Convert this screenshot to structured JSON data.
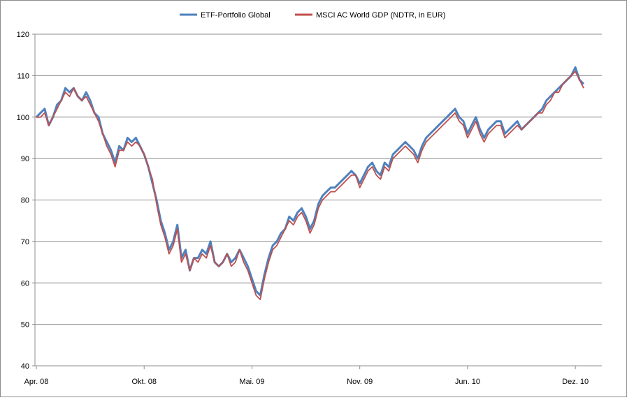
{
  "chart_data": {
    "type": "line",
    "title": "",
    "xlabel": "",
    "ylabel": "",
    "ylim": [
      40,
      120
    ],
    "y_ticks": [
      40,
      50,
      60,
      70,
      80,
      90,
      100,
      110,
      120
    ],
    "x_ticks": [
      "Apr. 08",
      "Okt. 08",
      "Mai. 09",
      "Nov. 09",
      "Jun. 10",
      "Dez. 10"
    ],
    "x_tick_index": [
      0,
      26,
      52,
      78,
      104,
      130
    ],
    "grid": true,
    "legend_position": "top-center",
    "series": [
      {
        "name": "ETF-Portfolio Global",
        "color": "#4f81bd",
        "values": [
          100,
          101,
          102,
          98,
          100,
          103,
          104,
          107,
          106,
          107,
          105,
          104,
          106,
          104,
          101,
          100,
          96,
          94,
          92,
          89,
          93,
          92,
          95,
          94,
          95,
          93,
          91,
          88,
          84,
          80,
          75,
          72,
          68,
          70,
          74,
          66,
          68,
          63,
          66,
          66,
          68,
          67,
          70,
          65,
          64,
          65,
          67,
          65,
          66,
          68,
          66,
          64,
          61,
          58,
          57,
          62,
          66,
          69,
          70,
          72,
          73,
          76,
          75,
          77,
          78,
          76,
          73,
          75,
          79,
          81,
          82,
          83,
          83,
          84,
          85,
          86,
          87,
          86,
          84,
          86,
          88,
          89,
          87,
          86,
          89,
          88,
          91,
          92,
          93,
          94,
          93,
          92,
          90,
          93,
          95,
          96,
          97,
          98,
          99,
          100,
          101,
          102,
          100,
          99,
          96,
          98,
          100,
          97,
          95,
          97,
          98,
          99,
          99,
          96,
          97,
          98,
          99,
          97,
          98,
          99,
          100,
          101,
          102,
          104,
          105,
          106,
          107,
          108,
          109,
          110,
          112,
          109,
          108
        ]
      },
      {
        "name": "MSCI AC World GDP (NDTR, in EUR)",
        "color": "#c0504d",
        "values": [
          100,
          100,
          101,
          98,
          100,
          102,
          104,
          106,
          105,
          107,
          105,
          104,
          105,
          103,
          101,
          99,
          96,
          93,
          91,
          88,
          92,
          92,
          94,
          93,
          94,
          93,
          91,
          88,
          85,
          79,
          74,
          71,
          67,
          69,
          73,
          65,
          67,
          63,
          66,
          65,
          67,
          66,
          69,
          65,
          64,
          65,
          67,
          64,
          65,
          68,
          65,
          63,
          60,
          57,
          56,
          61,
          65,
          68,
          69,
          71,
          73,
          75,
          74,
          76,
          77,
          75,
          72,
          74,
          78,
          80,
          81,
          82,
          82,
          83,
          84,
          85,
          86,
          86,
          83,
          85,
          87,
          88,
          86,
          85,
          88,
          87,
          90,
          91,
          92,
          93,
          92,
          91,
          89,
          92,
          94,
          95,
          96,
          97,
          98,
          99,
          100,
          101,
          99,
          98,
          95,
          97,
          99,
          96,
          94,
          96,
          97,
          98,
          98,
          95,
          96,
          97,
          98,
          97,
          98,
          99,
          100,
          101,
          101,
          103,
          104,
          106,
          106,
          108,
          109,
          110,
          111,
          109,
          107
        ]
      }
    ]
  }
}
